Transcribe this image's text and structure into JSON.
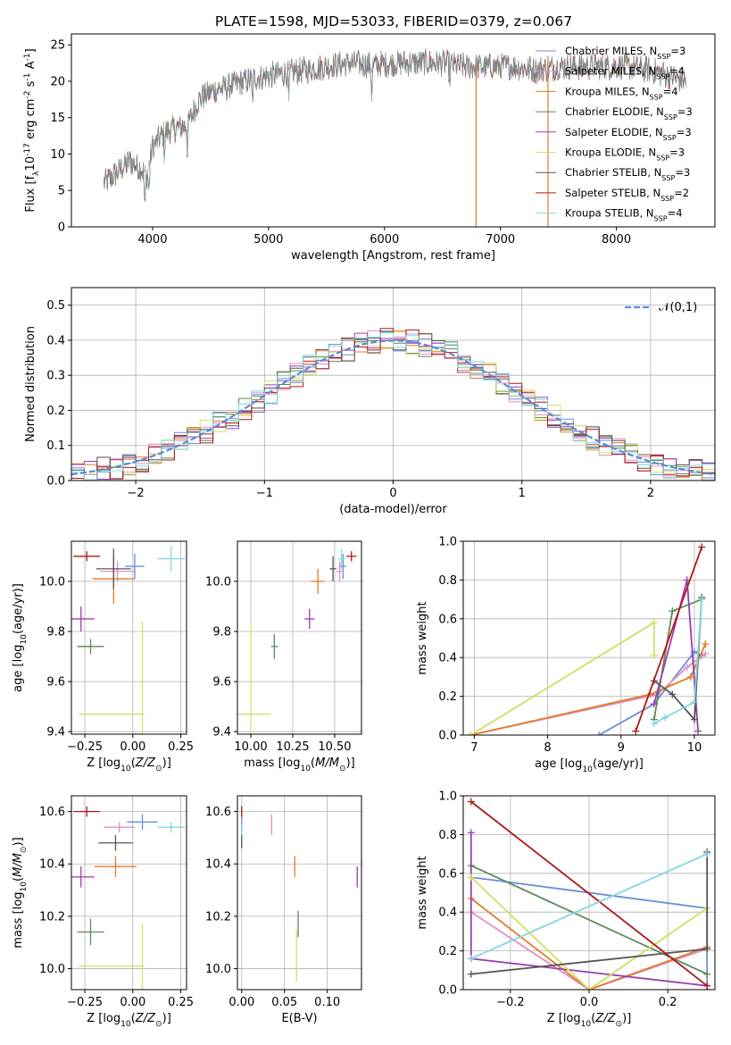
{
  "figure_title": "PLATE=1598, MJD=53033, FIBERID=0379, z=0.067",
  "colors": {
    "Chabrier MILES": "#6a8fd8",
    "Salpeter MILES": "#e58fc4",
    "Kroupa MILES": "#e07b2a",
    "Chabrier ELODIE": "#5a8a5a",
    "Salpeter ELODIE": "#9b3db0",
    "Kroupa ELODIE": "#cfe060",
    "Chabrier STELIB": "#555555",
    "Salpeter STELIB": "#b01818",
    "Kroupa STELIB": "#80d8e0",
    "gaussian": "#5a8ad8",
    "grid": "#b0b0b0"
  },
  "chart_data": [
    {
      "type": "line",
      "title": "PLATE=1598, MJD=53033, FIBERID=0379, z=0.067",
      "xlabel": "wavelength [Angstrom, rest frame]",
      "ylabel": "Flux [f$_\\lambda$10$^{-17}$ erg cm$^{-2}$ s$^{-1}$ A$^{-1}$]",
      "xlim": [
        3300,
        8850
      ],
      "ylim": [
        0,
        26.5
      ],
      "xticks": [
        "4000",
        "5000",
        "6000",
        "7000",
        "8000"
      ],
      "yticks": [
        "0",
        "5",
        "10",
        "15",
        "20",
        "25"
      ],
      "grid": false,
      "legend_position": "right",
      "spectrum_shape": {
        "x": [
          3580,
          3700,
          3800,
          3900,
          3950,
          4000,
          4100,
          4200,
          4300,
          4400,
          4500,
          4700,
          4900,
          5100,
          5300,
          5500,
          5700,
          5900,
          6100,
          6300,
          6500,
          6700,
          6900,
          7100,
          7300,
          7500,
          7700,
          7900,
          8100,
          8300,
          8500,
          8600
        ],
        "y": [
          6,
          7.5,
          9,
          8,
          7,
          11,
          13,
          13.5,
          14,
          17.5,
          18.5,
          19.5,
          20.5,
          21,
          21.5,
          22,
          22.5,
          22.2,
          22.5,
          22.5,
          22.5,
          22,
          22,
          22,
          21.5,
          22,
          22,
          22,
          22,
          21.5,
          20.5,
          20
        ]
      },
      "series": [
        {
          "name": "Chabrier MILES, N$_{SSP}$=3",
          "model": "Chabrier MILES"
        },
        {
          "name": "Salpeter MILES, N$_{SSP}$=4",
          "model": "Salpeter MILES"
        },
        {
          "name": "Kroupa MILES, N$_{SSP}$=4",
          "model": "Kroupa MILES"
        },
        {
          "name": "Chabrier ELODIE, N$_{SSP}$=3",
          "model": "Chabrier ELODIE"
        },
        {
          "name": "Salpeter ELODIE, N$_{SSP}$=3",
          "model": "Salpeter ELODIE"
        },
        {
          "name": "Kroupa ELODIE, N$_{SSP}$=3",
          "model": "Kroupa ELODIE"
        },
        {
          "name": "Chabrier STELIB, N$_{SSP}$=3",
          "model": "Chabrier STELIB"
        },
        {
          "name": "Salpeter STELIB, N$_{SSP}$=2",
          "model": "Salpeter STELIB"
        },
        {
          "name": "Kroupa STELIB, N$_{SSP}$=4",
          "model": "Kroupa STELIB"
        }
      ]
    },
    {
      "type": "line",
      "xlabel": "(data-model)/error",
      "ylabel": "Normed distribution",
      "xlim": [
        -2.5,
        2.5
      ],
      "ylim": [
        0,
        0.55
      ],
      "xticks": [
        "−2",
        "−1",
        "0",
        "1",
        "2"
      ],
      "yticks": [
        "0.0",
        "0.1",
        "0.2",
        "0.3",
        "0.4",
        "0.5"
      ],
      "grid": true,
      "legend_position": "top-right",
      "legend_label": "$\\mathcal{N}(0,1)$",
      "histogram_bin_width": 0.1
    },
    {
      "type": "scatter",
      "xlabel": "Z [log$_{10}$($Z/Z_\\odot$)]",
      "ylabel": "age  [log$_{10}$($age/yr$)]",
      "xlim": [
        -0.32,
        0.28
      ],
      "ylim": [
        9.39,
        10.16
      ],
      "xticks": [
        "−0.25",
        "0.00",
        "0.25"
      ],
      "yticks": [
        "9.4",
        "9.6",
        "9.8",
        "10.0"
      ],
      "grid": true,
      "points": [
        {
          "model": "Chabrier MILES",
          "x": 0.01,
          "y": 10.06,
          "xerr": 0.05,
          "yerr": 0.05
        },
        {
          "model": "Salpeter MILES",
          "x": -0.08,
          "y": 10.04,
          "xerr": 0.09,
          "yerr": 0.04
        },
        {
          "model": "Kroupa MILES",
          "x": -0.1,
          "y": 10.01,
          "xerr": 0.11,
          "yerr": 0.1
        },
        {
          "model": "Chabrier ELODIE",
          "x": -0.22,
          "y": 9.74,
          "xerr": 0.07,
          "yerr": 0.03
        },
        {
          "model": "Salpeter ELODIE",
          "x": -0.27,
          "y": 9.85,
          "xerr": 0.07,
          "yerr": 0.05
        },
        {
          "model": "Kroupa ELODIE",
          "x": -0.11,
          "y": 9.47,
          "xerr": 0.17,
          "yerr": 0.0
        },
        {
          "model": "Chabrier STELIB",
          "x": -0.1,
          "y": 10.05,
          "xerr": 0.09,
          "yerr": 0.08
        },
        {
          "model": "Salpeter STELIB",
          "x": -0.24,
          "y": 10.1,
          "xerr": 0.07,
          "yerr": 0.02
        },
        {
          "model": "Kroupa STELIB",
          "x": 0.2,
          "y": 10.09,
          "xerr": 0.07,
          "yerr": 0.05
        }
      ],
      "extra_vline": {
        "model": "Kroupa ELODIE",
        "x": 0.05,
        "y0": 9.39,
        "y1": 9.84
      }
    },
    {
      "type": "scatter",
      "xlabel": "mass [log$_{10}$($M/M_\\odot$)]",
      "xlim": [
        9.92,
        10.66
      ],
      "ylim": [
        9.39,
        10.16
      ],
      "xticks": [
        "10.00",
        "10.25",
        "10.50"
      ],
      "yticks": [
        "9.4",
        "9.6",
        "9.8",
        "10.0"
      ],
      "grid": true,
      "points": [
        {
          "model": "Chabrier MILES",
          "x": 10.55,
          "y": 10.06,
          "xerr": 0.02,
          "yerr": 0.05
        },
        {
          "model": "Salpeter MILES",
          "x": 10.53,
          "y": 10.04,
          "xerr": 0.02,
          "yerr": 0.04
        },
        {
          "model": "Kroupa MILES",
          "x": 10.4,
          "y": 10.0,
          "xerr": 0.04,
          "yerr": 0.05
        },
        {
          "model": "Chabrier ELODIE",
          "x": 10.14,
          "y": 9.74,
          "xerr": 0.02,
          "yerr": 0.05
        },
        {
          "model": "Salpeter ELODIE",
          "x": 10.35,
          "y": 9.85,
          "xerr": 0.03,
          "yerr": 0.04
        },
        {
          "model": "Kroupa ELODIE",
          "x": 10.01,
          "y": 9.47,
          "xerr": 0.11,
          "yerr": 0.0
        },
        {
          "model": "Chabrier STELIB",
          "x": 10.49,
          "y": 10.05,
          "xerr": 0.02,
          "yerr": 0.05
        },
        {
          "model": "Salpeter STELIB",
          "x": 10.6,
          "y": 10.1,
          "xerr": 0.03,
          "yerr": 0.02
        },
        {
          "model": "Kroupa STELIB",
          "x": 10.54,
          "y": 10.09,
          "xerr": 0.02,
          "yerr": 0.04
        }
      ],
      "extra_vline": {
        "model": "Kroupa ELODIE",
        "x": 10.0,
        "y0": 9.39,
        "y1": 9.84
      }
    },
    {
      "type": "line",
      "xlabel": "age  [log$_{10}$($age/yr$)]",
      "ylabel": "mass weight",
      "xlim": [
        6.85,
        10.28
      ],
      "ylim": [
        0,
        1
      ],
      "xticks": [
        "7",
        "8",
        "9",
        "10"
      ],
      "yticks": [
        "0.0",
        "0.2",
        "0.4",
        "0.6",
        "0.8",
        "1.0"
      ],
      "grid": true,
      "series": [
        {
          "model": "Chabrier MILES",
          "x": [
            8.7,
            9.45,
            10.0,
            10.1
          ],
          "y": [
            0.0,
            0.16,
            0.43,
            0.41
          ]
        },
        {
          "model": "Salpeter MILES",
          "x": [
            6.95,
            9.5,
            9.9,
            10.15
          ],
          "y": [
            0.0,
            0.21,
            0.35,
            0.42
          ]
        },
        {
          "model": "Kroupa MILES",
          "x": [
            6.95,
            9.4,
            9.95,
            10.15
          ],
          "y": [
            0.0,
            0.21,
            0.3,
            0.47
          ]
        },
        {
          "model": "Chabrier ELODIE",
          "x": [
            9.45,
            9.7,
            10.1
          ],
          "y": [
            0.08,
            0.64,
            0.7
          ]
        },
        {
          "model": "Salpeter ELODIE",
          "x": [
            9.45,
            9.9,
            10.05
          ],
          "y": [
            0.16,
            0.8,
            0.02
          ]
        },
        {
          "model": "Kroupa ELODIE",
          "x": [
            6.95,
            9.45,
            9.45
          ],
          "y": [
            0.0,
            0.58,
            0.41
          ]
        },
        {
          "model": "Chabrier STELIB",
          "x": [
            9.45,
            9.7,
            10.0,
            10.1
          ],
          "y": [
            0.28,
            0.21,
            0.08,
            0.71
          ]
        },
        {
          "model": "Salpeter STELIB",
          "x": [
            9.2,
            10.1
          ],
          "y": [
            0.02,
            0.97
          ]
        },
        {
          "model": "Kroupa STELIB",
          "x": [
            9.45,
            9.6,
            10.0,
            10.1
          ],
          "y": [
            0.06,
            0.09,
            0.17,
            0.7
          ]
        }
      ]
    },
    {
      "type": "scatter",
      "xlabel": "Z [log$_{10}$($Z/Z_\\odot$)]",
      "ylabel": "mass [log$_{10}$($M/M_\\odot$)]",
      "xlim": [
        -0.32,
        0.28
      ],
      "ylim": [
        9.92,
        10.66
      ],
      "xticks": [
        "−0.25",
        "0.00",
        "0.25"
      ],
      "yticks": [
        "10.0",
        "10.2",
        "10.4",
        "10.6"
      ],
      "grid": true,
      "points": [
        {
          "model": "Chabrier MILES",
          "x": 0.05,
          "y": 10.56,
          "xerr": 0.08,
          "yerr": 0.03
        },
        {
          "model": "Salpeter MILES",
          "x": -0.07,
          "y": 10.54,
          "xerr": 0.08,
          "yerr": 0.02
        },
        {
          "model": "Kroupa MILES",
          "x": -0.09,
          "y": 10.39,
          "xerr": 0.11,
          "yerr": 0.04
        },
        {
          "model": "Chabrier ELODIE",
          "x": -0.22,
          "y": 10.14,
          "xerr": 0.07,
          "yerr": 0.05
        },
        {
          "model": "Salpeter ELODIE",
          "x": -0.27,
          "y": 10.35,
          "xerr": 0.07,
          "yerr": 0.04
        },
        {
          "model": "Kroupa ELODIE",
          "x": -0.11,
          "y": 10.01,
          "xerr": 0.17,
          "yerr": 0.0
        },
        {
          "model": "Chabrier STELIB",
          "x": -0.09,
          "y": 10.48,
          "xerr": 0.09,
          "yerr": 0.03
        },
        {
          "model": "Salpeter STELIB",
          "x": -0.24,
          "y": 10.6,
          "xerr": 0.07,
          "yerr": 0.02
        },
        {
          "model": "Kroupa STELIB",
          "x": 0.2,
          "y": 10.54,
          "xerr": 0.07,
          "yerr": 0.02
        }
      ],
      "extra_vline": {
        "model": "Kroupa ELODIE",
        "x": 0.05,
        "y0": 9.92,
        "y1": 10.17
      }
    },
    {
      "type": "scatter",
      "xlabel": "E(B-V)",
      "xlim": [
        -0.005,
        0.14
      ],
      "ylim": [
        9.92,
        10.66
      ],
      "xticks": [
        "0.00",
        "0.05",
        "0.10"
      ],
      "yticks": [
        "10.0",
        "10.2",
        "10.4",
        "10.6"
      ],
      "grid": true,
      "points": [
        {
          "model": "Chabrier MILES",
          "x": 0.0,
          "y": 10.56,
          "yerr": 0.03
        },
        {
          "model": "Salpeter MILES",
          "x": 0.035,
          "y": 10.55,
          "yerr": 0.04
        },
        {
          "model": "Kroupa MILES",
          "x": 0.062,
          "y": 10.39,
          "yerr": 0.04
        },
        {
          "model": "Chabrier ELODIE",
          "x": 0.066,
          "y": 10.17,
          "yerr": 0.05
        },
        {
          "model": "Salpeter ELODIE",
          "x": 0.135,
          "y": 10.35,
          "yerr": 0.04
        },
        {
          "model": "Kroupa ELODIE",
          "x": 0.064,
          "y": 10.05,
          "yerr": 0.1
        },
        {
          "model": "Chabrier STELIB",
          "x": 0.0,
          "y": 10.5,
          "yerr": 0.04
        },
        {
          "model": "Salpeter STELIB",
          "x": 0.0,
          "y": 10.6,
          "yerr": 0.02
        },
        {
          "model": "Kroupa STELIB",
          "x": 0.0,
          "y": 10.53,
          "yerr": 0.02
        }
      ]
    },
    {
      "type": "line",
      "xlabel": "Z [log$_{10}$($Z/Z_\\odot$)]",
      "ylabel": "mass weight",
      "xlim": [
        -0.32,
        0.32
      ],
      "ylim": [
        0,
        1
      ],
      "xticks": [
        "−0.2",
        "0.0",
        "0.2"
      ],
      "yticks": [
        "0.0",
        "0.2",
        "0.4",
        "0.6",
        "0.8",
        "1.0"
      ],
      "grid": true,
      "series": [
        {
          "model": "Chabrier MILES",
          "x": [
            -0.3,
            0.3,
            0.3
          ],
          "y": [
            0.58,
            0.42,
            0.0
          ]
        },
        {
          "model": "Salpeter MILES",
          "x": [
            -0.3,
            0.0,
            0.3
          ],
          "y": [
            0.4,
            0.0,
            0.21
          ]
        },
        {
          "model": "Kroupa MILES",
          "x": [
            -0.3,
            0.0,
            0.3
          ],
          "y": [
            0.47,
            0.0,
            0.22
          ]
        },
        {
          "model": "Chabrier ELODIE",
          "x": [
            -0.3,
            0.3
          ],
          "y": [
            0.64,
            0.08
          ]
        },
        {
          "model": "Salpeter ELODIE",
          "x": [
            -0.3,
            -0.3,
            0.3
          ],
          "y": [
            0.81,
            0.16,
            0.02
          ]
        },
        {
          "model": "Kroupa ELODIE",
          "x": [
            -0.3,
            0.0,
            0.3
          ],
          "y": [
            0.58,
            0.0,
            0.42
          ]
        },
        {
          "model": "Chabrier STELIB",
          "x": [
            -0.3,
            0.3,
            0.3
          ],
          "y": [
            0.08,
            0.21,
            0.71
          ]
        },
        {
          "model": "Salpeter STELIB",
          "x": [
            -0.3,
            0.3
          ],
          "y": [
            0.97,
            0.02
          ]
        },
        {
          "model": "Kroupa STELIB",
          "x": [
            -0.3,
            0.3
          ],
          "y": [
            0.16,
            0.7
          ]
        }
      ]
    }
  ]
}
